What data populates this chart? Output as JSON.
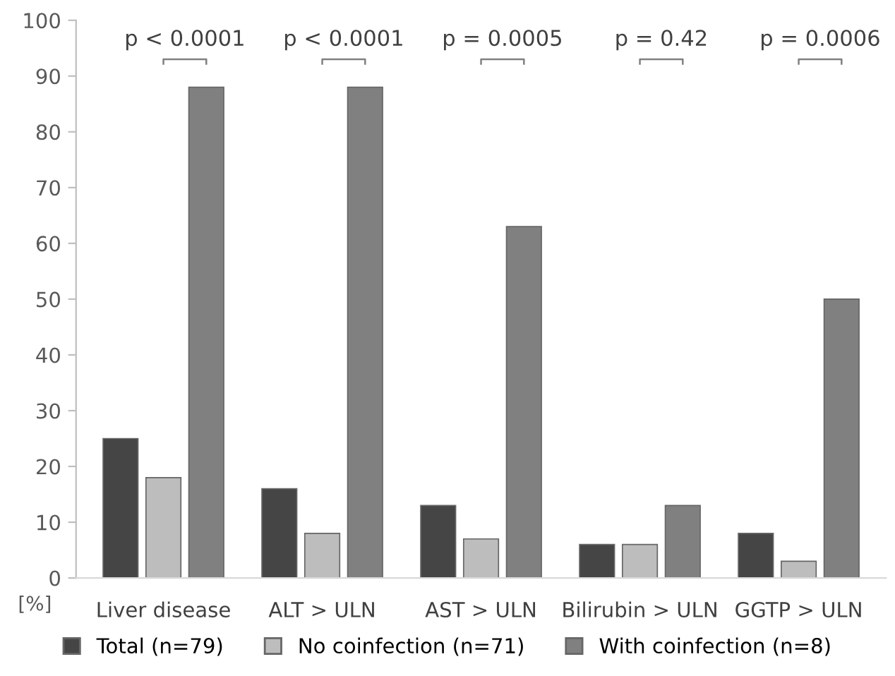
{
  "chart_data": {
    "type": "bar",
    "ylabel": "[%]",
    "categories": [
      "Liver disease",
      "ALT > ULN",
      "AST > ULN",
      "Bilirubin > ULN",
      "GGTP > ULN"
    ],
    "series": [
      {
        "name": "Total (n=79)",
        "color": "#454545",
        "values": [
          25,
          16,
          13,
          6,
          8
        ]
      },
      {
        "name": "No coinfection (n=71)",
        "color": "#bdbdbd",
        "values": [
          18,
          8,
          7,
          6,
          3
        ]
      },
      {
        "name": "With coinfection (n=8)",
        "color": "#808080",
        "values": [
          88,
          88,
          63,
          13,
          50
        ]
      }
    ],
    "annotations": [
      "p < 0.0001",
      "p < 0.0001",
      "p = 0.0005",
      "p = 0.42",
      "p = 0.0006"
    ],
    "ylim": [
      0,
      100
    ],
    "yticks": [
      0,
      10,
      20,
      30,
      40,
      50,
      60,
      70,
      80,
      90,
      100
    ],
    "grid": false,
    "legend": "bottom"
  }
}
